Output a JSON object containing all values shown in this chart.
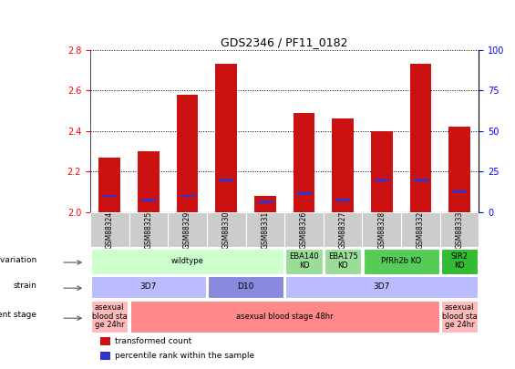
{
  "title": "GDS2346 / PF11_0182",
  "samples": [
    "GSM88324",
    "GSM88325",
    "GSM88329",
    "GSM88330",
    "GSM88331",
    "GSM88326",
    "GSM88327",
    "GSM88328",
    "GSM88332",
    "GSM88333"
  ],
  "red_bar_heights": [
    2.27,
    2.3,
    2.58,
    2.73,
    2.08,
    2.49,
    2.46,
    2.4,
    2.73,
    2.42
  ],
  "blue_marker_values": [
    2.08,
    2.06,
    2.08,
    2.16,
    2.05,
    2.09,
    2.06,
    2.16,
    2.16,
    2.1
  ],
  "ymin": 2.0,
  "ymax": 2.8,
  "yticks": [
    2.0,
    2.2,
    2.4,
    2.6,
    2.8
  ],
  "right_yticks": [
    0,
    25,
    50,
    75,
    100
  ],
  "bar_color": "#cc1111",
  "blue_color": "#3333cc",
  "genotype_groups": [
    {
      "label": "wildtype",
      "start": 0,
      "end": 4,
      "color": "#ccffcc"
    },
    {
      "label": "EBA140\nKO",
      "start": 5,
      "end": 5,
      "color": "#99dd99"
    },
    {
      "label": "EBA175\nKO",
      "start": 6,
      "end": 6,
      "color": "#99dd99"
    },
    {
      "label": "PfRh2b KO",
      "start": 7,
      "end": 8,
      "color": "#55cc55"
    },
    {
      "label": "SIR2\nKO",
      "start": 9,
      "end": 9,
      "color": "#33bb33"
    }
  ],
  "strain_groups": [
    {
      "label": "3D7",
      "start": 0,
      "end": 2,
      "color": "#bbbbff"
    },
    {
      "label": "D10",
      "start": 3,
      "end": 4,
      "color": "#8888dd"
    },
    {
      "label": "3D7",
      "start": 5,
      "end": 9,
      "color": "#bbbbff"
    }
  ],
  "dev_groups": [
    {
      "label": "asexual\nblood sta\nge 24hr",
      "start": 0,
      "end": 0,
      "color": "#ffbbbb"
    },
    {
      "label": "asexual blood stage 48hr",
      "start": 1,
      "end": 8,
      "color": "#ff8888"
    },
    {
      "label": "asexual\nblood sta\nge 24hr",
      "start": 9,
      "end": 9,
      "color": "#ffbbbb"
    }
  ],
  "legend_items": [
    {
      "label": "transformed count",
      "color": "#cc1111"
    },
    {
      "label": "percentile rank within the sample",
      "color": "#3333cc"
    }
  ]
}
